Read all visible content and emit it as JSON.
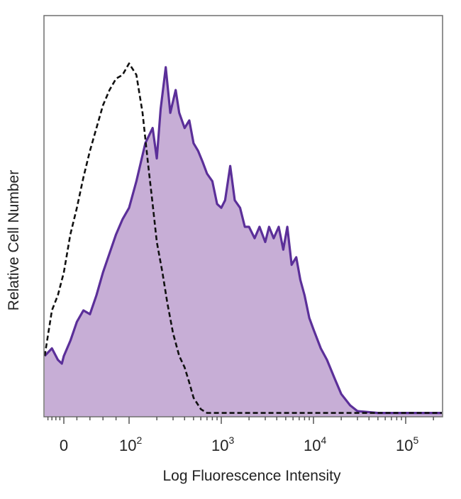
{
  "chart_data": {
    "type": "area",
    "title": "",
    "xlabel": "Log Fluorescence Intensity",
    "ylabel": "Relative Cell Number",
    "x_scale": "biexponential",
    "xlim": [
      -100,
      250000
    ],
    "ylim": [
      0,
      1
    ],
    "x_ticks": [
      {
        "value": 0,
        "base": "0",
        "exp": ""
      },
      {
        "value": 100,
        "base": "10",
        "exp": "2"
      },
      {
        "value": 1000,
        "base": "10",
        "exp": "3"
      },
      {
        "value": 10000,
        "base": "10",
        "exp": "4"
      },
      {
        "value": 100000,
        "base": "10",
        "exp": "5"
      }
    ],
    "series": [
      {
        "style": "filled",
        "color": "#5b2f99",
        "fill": "#c7aed6",
        "x": [
          -100,
          -60,
          -30,
          -10,
          0,
          10,
          20,
          30,
          40,
          50,
          60,
          70,
          80,
          90,
          100,
          120,
          150,
          180,
          200,
          220,
          250,
          280,
          320,
          350,
          400,
          450,
          500,
          560,
          630,
          700,
          800,
          900,
          1000,
          1100,
          1250,
          1400,
          1600,
          1800,
          2000,
          2300,
          2600,
          3000,
          3300,
          3700,
          4200,
          4700,
          5200,
          5800,
          6500,
          7200,
          8000,
          9000,
          10000,
          12000,
          14000,
          17000,
          20000,
          25000,
          30000,
          50000,
          100000,
          250000
        ],
        "y": [
          0.16,
          0.18,
          0.15,
          0.14,
          0.16,
          0.2,
          0.25,
          0.28,
          0.27,
          0.32,
          0.38,
          0.43,
          0.48,
          0.52,
          0.55,
          0.62,
          0.72,
          0.76,
          0.68,
          0.81,
          0.92,
          0.8,
          0.86,
          0.8,
          0.76,
          0.78,
          0.72,
          0.7,
          0.67,
          0.64,
          0.62,
          0.56,
          0.55,
          0.57,
          0.66,
          0.57,
          0.55,
          0.5,
          0.5,
          0.47,
          0.5,
          0.46,
          0.5,
          0.47,
          0.5,
          0.44,
          0.5,
          0.4,
          0.42,
          0.36,
          0.32,
          0.26,
          0.23,
          0.18,
          0.15,
          0.1,
          0.06,
          0.03,
          0.015,
          0.01,
          0.01,
          0.01
        ]
      },
      {
        "style": "dashed",
        "color": "#111111",
        "x": [
          -100,
          -60,
          -30,
          0,
          10,
          20,
          30,
          40,
          50,
          60,
          70,
          80,
          90,
          100,
          120,
          140,
          160,
          180,
          200,
          230,
          260,
          300,
          350,
          400,
          450,
          500,
          600,
          700,
          1000,
          10000,
          250000
        ],
        "y": [
          0.16,
          0.28,
          0.32,
          0.38,
          0.48,
          0.55,
          0.63,
          0.7,
          0.76,
          0.82,
          0.86,
          0.89,
          0.9,
          0.93,
          0.9,
          0.8,
          0.67,
          0.56,
          0.46,
          0.38,
          0.3,
          0.22,
          0.16,
          0.13,
          0.09,
          0.05,
          0.02,
          0.01,
          0.01,
          0.01,
          0.01
        ]
      }
    ],
    "grid": false,
    "legend": "none"
  }
}
